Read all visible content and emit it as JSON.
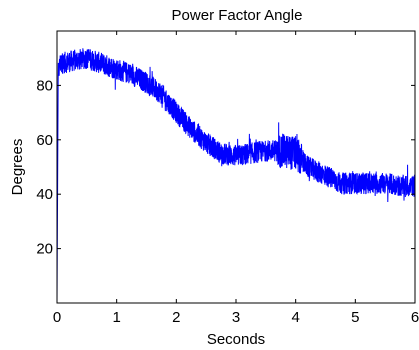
{
  "chart_data": {
    "type": "line",
    "title": "Power Factor Angle",
    "xlabel": "Seconds",
    "ylabel": "Degrees",
    "xlim": [
      0,
      6
    ],
    "ylim": [
      0,
      100
    ],
    "x_ticks": [
      "0",
      "1",
      "2",
      "3",
      "4",
      "5",
      "6"
    ],
    "y_ticks": [
      "20",
      "40",
      "60",
      "80"
    ],
    "grid": false,
    "legend": "none",
    "series": [
      {
        "color": "#0000ff",
        "x": [
          0,
          0.02,
          0.05,
          0.25,
          0.5,
          0.75,
          1.0,
          1.25,
          1.5,
          1.75,
          2.0,
          2.25,
          2.5,
          2.75,
          3.0,
          3.25,
          3.5,
          3.75,
          4.0,
          4.2,
          4.5,
          4.75,
          5.0,
          5.25,
          5.5,
          5.75,
          6.0
        ],
        "y": [
          0,
          84,
          88,
          89,
          90,
          88,
          86,
          84,
          81,
          77,
          70,
          64,
          59,
          55,
          54,
          55,
          56,
          56,
          55,
          50,
          47,
          44,
          44,
          44,
          44,
          43,
          43
        ],
        "noise": 4
      }
    ]
  }
}
